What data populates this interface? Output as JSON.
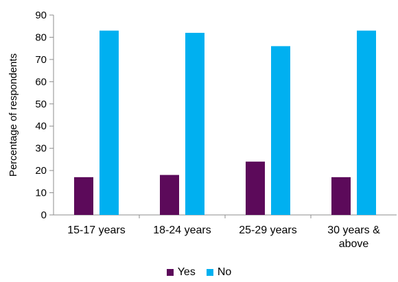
{
  "chart_data": {
    "type": "bar",
    "categories": [
      "15-17 years",
      "18-24 years",
      "25-29 years",
      "30 years & above"
    ],
    "category_lines": [
      [
        "15-17 years"
      ],
      [
        "18-24 years"
      ],
      [
        "25-29 years"
      ],
      [
        "30 years &",
        "above"
      ]
    ],
    "series": [
      {
        "name": "Yes",
        "color": "#5c0a5a",
        "values": [
          17,
          18,
          24,
          17
        ]
      },
      {
        "name": "No",
        "color": "#00b0f0",
        "values": [
          83,
          82,
          76,
          83
        ]
      }
    ],
    "ylabel": "Percentage of respondents",
    "xlabel": "",
    "ylim": [
      0,
      90
    ],
    "yticks": [
      0,
      10,
      20,
      30,
      40,
      50,
      60,
      70,
      80,
      90
    ],
    "grid": false,
    "legend_position": "bottom"
  }
}
